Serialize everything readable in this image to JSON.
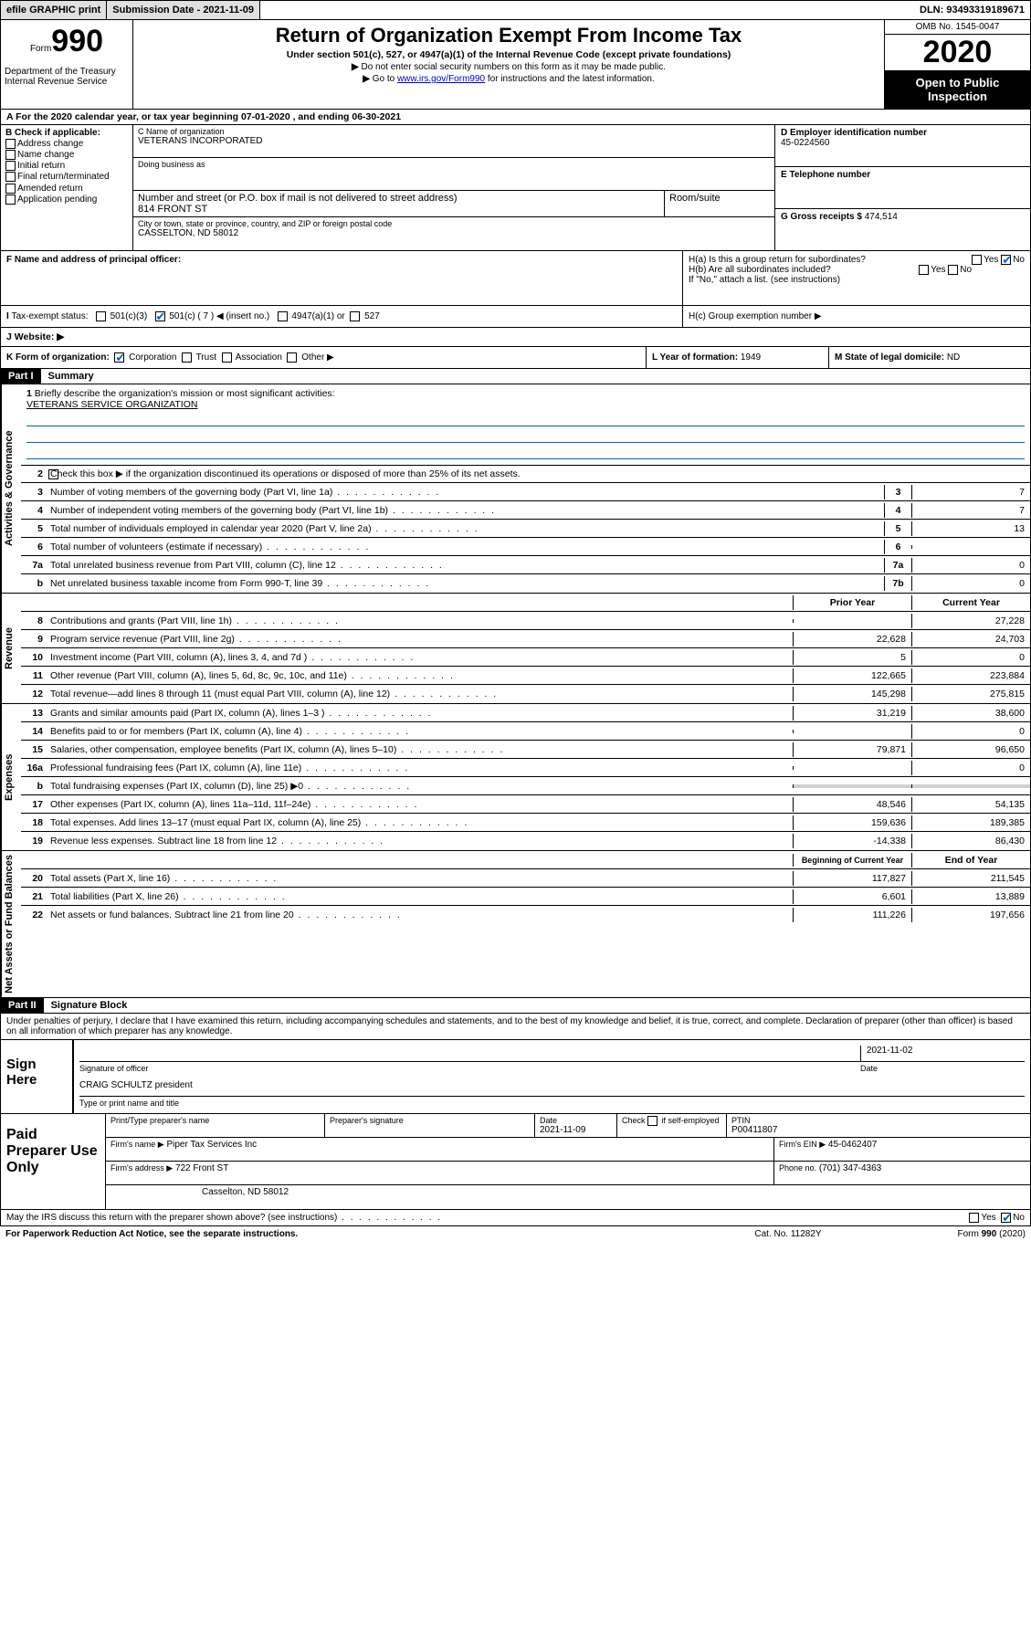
{
  "topbar": {
    "efile": "efile GRAPHIC print",
    "sub_date_lbl": "Submission Date - 2021-11-09",
    "dln": "DLN: 93493319189671"
  },
  "header": {
    "form_word": "Form",
    "form_num": "990",
    "dept": "Department of the Treasury\nInternal Revenue Service",
    "title": "Return of Organization Exempt From Income Tax",
    "subtitle": "Under section 501(c), 527, or 4947(a)(1) of the Internal Revenue Code (except private foundations)",
    "note1": "Do not enter social security numbers on this form as it may be made public.",
    "note2_pre": "Go to ",
    "note2_link": "www.irs.gov/Form990",
    "note2_post": " for instructions and the latest information.",
    "omb": "OMB No. 1545-0047",
    "year": "2020",
    "open": "Open to Public Inspection"
  },
  "lineA": "For the 2020 calendar year, or tax year beginning 07-01-2020    , and ending 06-30-2021",
  "colB": {
    "hdr": "B Check if applicable:",
    "i1": "Address change",
    "i2": "Name change",
    "i3": "Initial return",
    "i4": "Final return/terminated",
    "i5": "Amended return",
    "i6": "Application pending"
  },
  "C": {
    "name_lbl": "C Name of organization",
    "name": "VETERANS INCORPORATED",
    "dba_lbl": "Doing business as",
    "addr_lbl": "Number and street (or P.O. box if mail is not delivered to street address)",
    "room_lbl": "Room/suite",
    "addr": "814 FRONT ST",
    "city_lbl": "City or town, state or province, country, and ZIP or foreign postal code",
    "city": "CASSELTON, ND  58012"
  },
  "D": {
    "lbl": "D Employer identification number",
    "val": "45-0224560"
  },
  "E": {
    "lbl": "E Telephone number",
    "val": ""
  },
  "G": {
    "lbl": "G Gross receipts $ ",
    "val": "474,514"
  },
  "F": {
    "lbl": "F  Name and address of principal officer:"
  },
  "H": {
    "a": "H(a)  Is this a group return for subordinates?",
    "b": "H(b)  Are all subordinates included?",
    "b_note": "If \"No,\" attach a list. (see instructions)",
    "c": "H(c)  Group exemption number ▶"
  },
  "I": {
    "lbl": "Tax-exempt status:",
    "o1": "501(c)(3)",
    "o2": "501(c) ( 7 ) ◀ (insert no.)",
    "o3": "4947(a)(1) or",
    "o4": "527"
  },
  "J": {
    "lbl": "Website: ▶"
  },
  "K": {
    "lbl": "K Form of organization:",
    "o1": "Corporation",
    "o2": "Trust",
    "o3": "Association",
    "o4": "Other ▶"
  },
  "L": {
    "lbl": "L Year of formation: ",
    "val": "1949"
  },
  "M": {
    "lbl": "M State of legal domicile: ",
    "val": "ND"
  },
  "part1": {
    "tag": "Part I",
    "title": "Summary"
  },
  "summary": {
    "q1": "Briefly describe the organization's mission or most significant activities:",
    "mission": "VETERANS SERVICE ORGANIZATION",
    "q2": "Check this box ▶        if the organization discontinued its operations or disposed of more than 25% of its net assets.",
    "rows_single": [
      {
        "n": "3",
        "t": "Number of voting members of the governing body (Part VI, line 1a)",
        "box": "3",
        "v": "7"
      },
      {
        "n": "4",
        "t": "Number of independent voting members of the governing body (Part VI, line 1b)",
        "box": "4",
        "v": "7"
      },
      {
        "n": "5",
        "t": "Total number of individuals employed in calendar year 2020 (Part V, line 2a)",
        "box": "5",
        "v": "13"
      },
      {
        "n": "6",
        "t": "Total number of volunteers (estimate if necessary)",
        "box": "6",
        "v": ""
      },
      {
        "n": "7a",
        "t": "Total unrelated business revenue from Part VIII, column (C), line 12",
        "box": "7a",
        "v": "0"
      },
      {
        "n": "b",
        "t": "Net unrelated business taxable income from Form 990-T, line 39",
        "box": "7b",
        "v": "0"
      }
    ],
    "hdr_prior": "Prior Year",
    "hdr_curr": "Current Year",
    "revenue": [
      {
        "n": "8",
        "t": "Contributions and grants (Part VIII, line 1h)",
        "p": "",
        "c": "27,228"
      },
      {
        "n": "9",
        "t": "Program service revenue (Part VIII, line 2g)",
        "p": "22,628",
        "c": "24,703"
      },
      {
        "n": "10",
        "t": "Investment income (Part VIII, column (A), lines 3, 4, and 7d )",
        "p": "5",
        "c": "0"
      },
      {
        "n": "11",
        "t": "Other revenue (Part VIII, column (A), lines 5, 6d, 8c, 9c, 10c, and 11e)",
        "p": "122,665",
        "c": "223,884"
      },
      {
        "n": "12",
        "t": "Total revenue—add lines 8 through 11 (must equal Part VIII, column (A), line 12)",
        "p": "145,298",
        "c": "275,815"
      }
    ],
    "expenses": [
      {
        "n": "13",
        "t": "Grants and similar amounts paid (Part IX, column (A), lines 1–3 )",
        "p": "31,219",
        "c": "38,600"
      },
      {
        "n": "14",
        "t": "Benefits paid to or for members (Part IX, column (A), line 4)",
        "p": "",
        "c": "0"
      },
      {
        "n": "15",
        "t": "Salaries, other compensation, employee benefits (Part IX, column (A), lines 5–10)",
        "p": "79,871",
        "c": "96,650"
      },
      {
        "n": "16a",
        "t": "Professional fundraising fees (Part IX, column (A), line 11e)",
        "p": "",
        "c": "0"
      },
      {
        "n": "b",
        "t": "Total fundraising expenses (Part IX, column (D), line 25) ▶0",
        "p": "GRAY",
        "c": "GRAY"
      },
      {
        "n": "17",
        "t": "Other expenses (Part IX, column (A), lines 11a–11d, 11f–24e)",
        "p": "48,546",
        "c": "54,135"
      },
      {
        "n": "18",
        "t": "Total expenses. Add lines 13–17 (must equal Part IX, column (A), line 25)",
        "p": "159,636",
        "c": "189,385"
      },
      {
        "n": "19",
        "t": "Revenue less expenses. Subtract line 18 from line 12",
        "p": "-14,338",
        "c": "86,430"
      }
    ],
    "hdr_begin": "Beginning of Current Year",
    "hdr_end": "End of Year",
    "netassets": [
      {
        "n": "20",
        "t": "Total assets (Part X, line 16)",
        "p": "117,827",
        "c": "211,545"
      },
      {
        "n": "21",
        "t": "Total liabilities (Part X, line 26)",
        "p": "6,601",
        "c": "13,889"
      },
      {
        "n": "22",
        "t": "Net assets or fund balances. Subtract line 21 from line 20",
        "p": "111,226",
        "c": "197,656"
      }
    ]
  },
  "vlabels": {
    "gov": "Activities & Governance",
    "rev": "Revenue",
    "exp": "Expenses",
    "net": "Net Assets or Fund Balances"
  },
  "part2": {
    "tag": "Part II",
    "title": "Signature Block"
  },
  "sig_decl": "Under penalties of perjury, I declare that I have examined this return, including accompanying schedules and statements, and to the best of my knowledge and belief, it is true, correct, and complete. Declaration of preparer (other than officer) is based on all information of which preparer has any knowledge.",
  "sign": {
    "lbl": "Sign Here",
    "officer_cap": "Signature of officer",
    "date": "2021-11-02",
    "date_cap": "Date",
    "name": "CRAIG SCHULTZ  president",
    "name_cap": "Type or print name and title"
  },
  "prep": {
    "lbl": "Paid Preparer Use Only",
    "h1": "Print/Type preparer's name",
    "h2": "Preparer's signature",
    "h3": "Date",
    "h3v": "2021-11-09",
    "h4": "Check        if self-employed",
    "h5": "PTIN",
    "h5v": "P00411807",
    "firm_lbl": "Firm's name      ▶",
    "firm": "Piper Tax Services Inc",
    "ein_lbl": "Firm's EIN ▶",
    "ein": "45-0462407",
    "addr_lbl": "Firm's address ▶",
    "addr1": "722 Front ST",
    "addr2": "Casselton, ND  58012",
    "phone_lbl": "Phone no.",
    "phone": "(701) 347-4363"
  },
  "discuss": "May the IRS discuss this return with the preparer shown above? (see instructions)",
  "paperwork": {
    "l": "For Paperwork Reduction Act Notice, see the separate instructions.",
    "c": "Cat. No. 11282Y",
    "r": "Form 990 (2020)"
  },
  "yn": {
    "yes": "Yes",
    "no": "No"
  }
}
